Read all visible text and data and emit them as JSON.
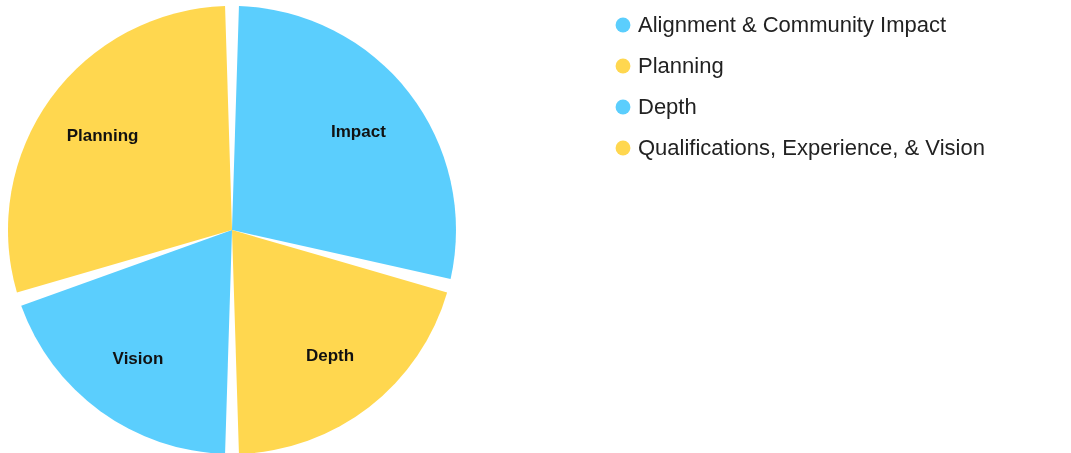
{
  "chart_data": {
    "type": "pie",
    "categories": [
      "Alignment & Community Impact",
      "Planning",
      "Depth",
      "Qualifications, Experience, & Vision"
    ],
    "values": [
      29,
      21,
      20,
      30
    ],
    "colors": [
      "#5bcefd",
      "#ffd74f",
      "#5bcefd",
      "#ffd74f"
    ],
    "value_labels": [
      "Impact",
      "Depth",
      "Vision",
      "Planning"
    ],
    "legend": "right"
  }
}
